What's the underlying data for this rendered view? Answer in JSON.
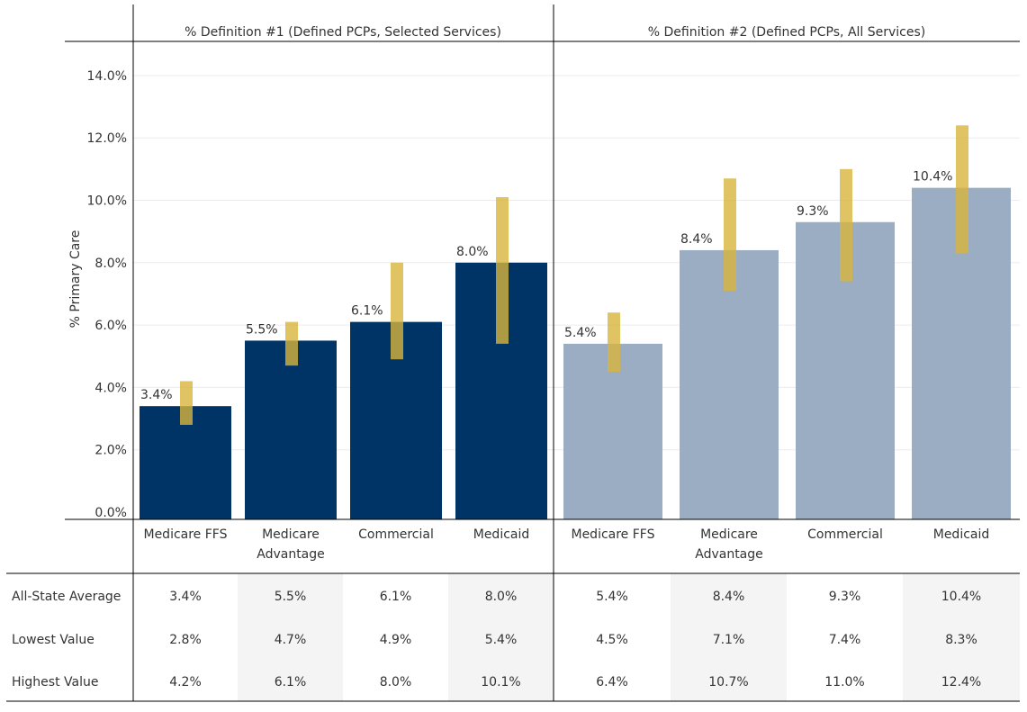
{
  "chart_data": {
    "type": "bar",
    "ylabel": "% Primary Care",
    "ylim": [
      0,
      15
    ],
    "yticks": [
      "0.0%",
      "2.0%",
      "4.0%",
      "6.0%",
      "8.0%",
      "10.0%",
      "12.0%",
      "14.0%"
    ],
    "ytick_values": [
      0,
      2,
      4,
      6,
      8,
      10,
      12,
      14
    ],
    "grid": true,
    "panels": [
      {
        "title": "% Definition #1 (Defined PCPs, Selected Services)",
        "color": "#003366",
        "categories": [
          [
            "Medicare FFS"
          ],
          [
            "Medicare",
            "Advantage"
          ],
          [
            "Commercial"
          ],
          [
            "Medicaid"
          ]
        ],
        "values": [
          3.4,
          5.5,
          6.1,
          8.0
        ],
        "value_labels": [
          "3.4%",
          "5.5%",
          "6.1%",
          "8.0%"
        ],
        "low": [
          2.8,
          4.7,
          4.9,
          5.4
        ],
        "high": [
          4.2,
          6.1,
          8.0,
          10.1
        ]
      },
      {
        "title": "% Definition #2 (Defined PCPs, All Services)",
        "color": "#9badc3",
        "categories": [
          [
            "Medicare FFS"
          ],
          [
            "Medicare",
            "Advantage"
          ],
          [
            "Commercial"
          ],
          [
            "Medicaid"
          ]
        ],
        "values": [
          5.4,
          8.4,
          9.3,
          10.4
        ],
        "value_labels": [
          "5.4%",
          "8.4%",
          "9.3%",
          "10.4%"
        ],
        "low": [
          4.5,
          7.1,
          7.4,
          8.3
        ],
        "high": [
          6.4,
          10.7,
          11.0,
          12.4
        ]
      }
    ],
    "range_color": "#d8b43c",
    "table": {
      "row_labels": [
        "All-State Average",
        "Lowest Value",
        "Highest Value"
      ],
      "rows": [
        [
          "3.4%",
          "5.5%",
          "6.1%",
          "8.0%",
          "5.4%",
          "8.4%",
          "9.3%",
          "10.4%"
        ],
        [
          "2.8%",
          "4.7%",
          "4.9%",
          "5.4%",
          "4.5%",
          "7.1%",
          "7.4%",
          "8.3%"
        ],
        [
          "4.2%",
          "6.1%",
          "8.0%",
          "10.1%",
          "6.4%",
          "10.7%",
          "11.0%",
          "12.4%"
        ]
      ],
      "shade_color": "#f4f4f4"
    }
  }
}
